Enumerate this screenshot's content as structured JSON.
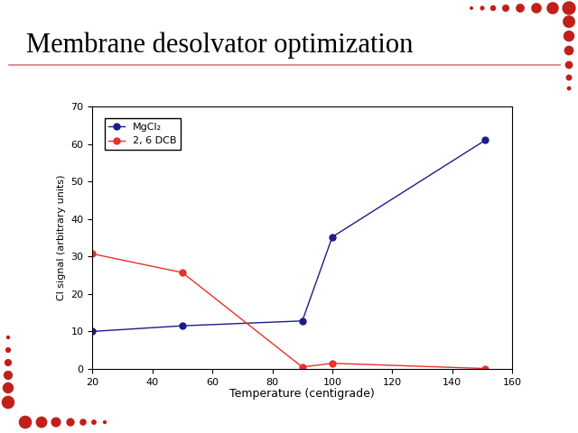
{
  "chart_data": {
    "type": "line",
    "title": "Membrane desolvator optimization",
    "x_label": "Temperature (centigrade)",
    "y_label": "Cl signal (arbitrary units)",
    "series": [
      {
        "name": "MgCl₂",
        "color": "#1c1c8a",
        "marker": "o",
        "line_style": "solid",
        "x": [
          20,
          50,
          90,
          100,
          151
        ],
        "values": [
          10,
          11.5,
          12.8,
          35.2,
          61
        ]
      },
      {
        "name": "2, 6 DCB",
        "color": "#e8302a",
        "marker": "o",
        "line_style": "solid",
        "x": [
          20,
          50,
          90,
          100,
          151
        ],
        "values": [
          30.7,
          25.7,
          0.5,
          1.5,
          0.1
        ]
      }
    ],
    "xlim": [
      20,
      160
    ],
    "xticks": [
      20,
      40,
      60,
      80,
      100,
      120,
      140,
      160
    ],
    "ylim": [
      0,
      70
    ],
    "yticks": [
      0,
      10,
      20,
      30,
      40,
      50,
      60,
      70
    ],
    "grid": false,
    "legend": "upper left"
  }
}
